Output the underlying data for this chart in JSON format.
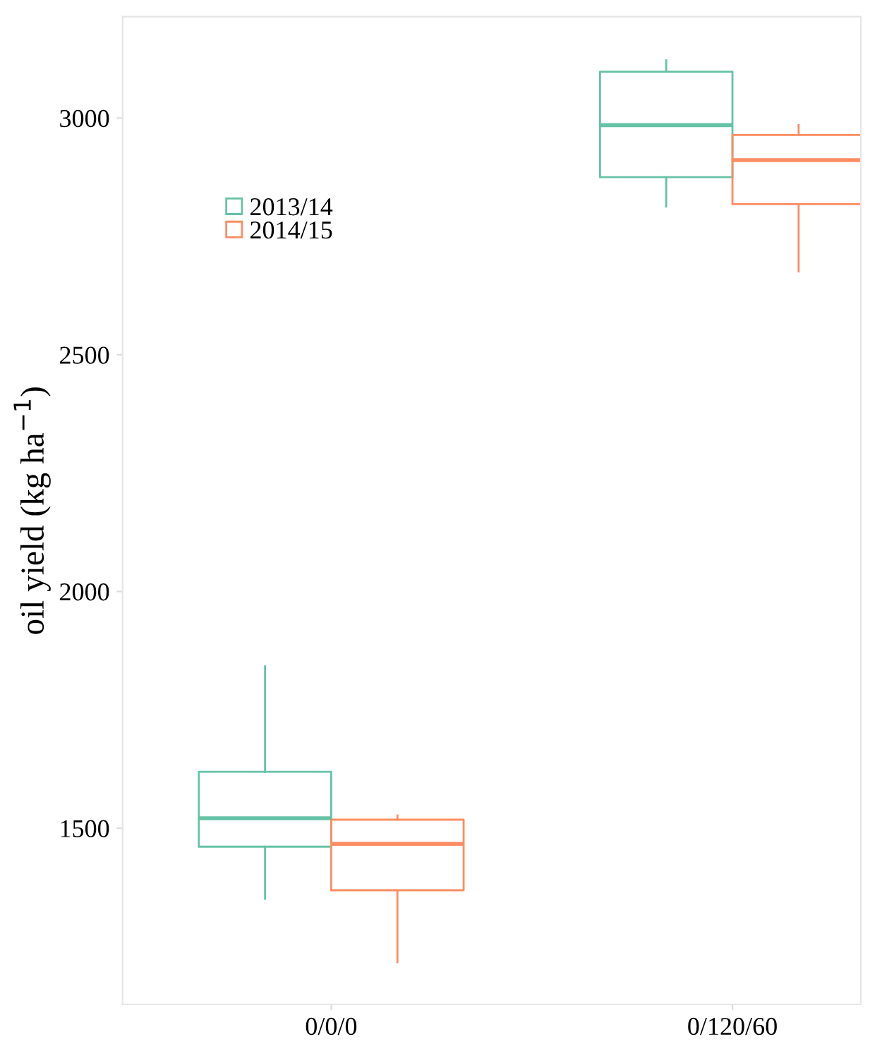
{
  "chart_data": {
    "type": "box",
    "ylabel": "oil yield (kg ha$^{−1}$)",
    "categories": [
      "0/0/0",
      "0/120/60"
    ],
    "series": [
      {
        "name": "2013/14",
        "color": "#66c2a5",
        "boxes": [
          {
            "low": 1351,
            "q1": 1461,
            "median": 1521,
            "q3": 1619,
            "high": 1842
          },
          {
            "low": 2813,
            "q1": 2875,
            "median": 2985,
            "q3": 3098,
            "high": 3122
          }
        ]
      },
      {
        "name": "2014/15",
        "color": "#fc8d62",
        "boxes": [
          {
            "low": 1217,
            "q1": 1369,
            "median": 1467,
            "q3": 1518,
            "high": 1527
          },
          {
            "low": 2676,
            "q1": 2818,
            "median": 2911,
            "q3": 2964,
            "high": 2985
          }
        ]
      }
    ],
    "ylim": [
      1128,
      3214
    ],
    "yticks": [
      1500,
      2000,
      2500,
      3000
    ],
    "grid": false,
    "legend": "top left"
  }
}
